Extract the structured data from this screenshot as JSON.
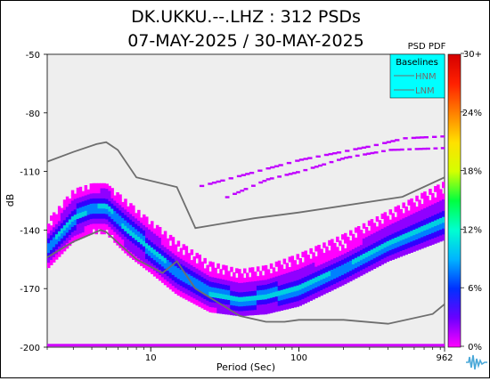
{
  "chart_data": {
    "type": "heatmap",
    "title": "DK.UKKU.--.LHZ : 312 PSDs",
    "subtitle": "07-MAY-2025 / 30-MAY-2025",
    "xlabel": "Period (Sec)",
    "ylabel": "dB",
    "x_scale": "log",
    "xlim": [
      2,
      962
    ],
    "ylim": [
      -200,
      -50
    ],
    "x_ticks": [
      10,
      100,
      962
    ],
    "x_tick_labels": [
      "10",
      "100",
      "962"
    ],
    "y_ticks": [
      -50,
      -80,
      -110,
      -140,
      -170,
      -200
    ],
    "y_tick_labels": [
      "-50",
      "-80",
      "-110",
      "-140",
      "-170",
      "-200"
    ],
    "grid": false,
    "background_color": "#eeeeee",
    "colorbar": {
      "title": "PSD PDF",
      "ticks": [
        "30+",
        "24%",
        "18%",
        "12%",
        "6%",
        "0%"
      ],
      "range_percent": [
        0,
        30
      ],
      "colors": [
        "#ff00ff",
        "#6a00ff",
        "#0030ff",
        "#00b4ff",
        "#00ffd0",
        "#00ff40",
        "#d4ff00",
        "#ffe000",
        "#ff8000",
        "#ff2000",
        "#d40000"
      ]
    },
    "legend": {
      "title": "Baselines",
      "placement": "top-right",
      "background": "#00ffff",
      "entries": [
        "HNM",
        "LNM"
      ]
    },
    "baselines": [
      {
        "name": "HNM",
        "color": "#6e6e6e",
        "points": [
          [
            2,
            -105
          ],
          [
            3,
            -100
          ],
          [
            4.3,
            -96
          ],
          [
            5,
            -95
          ],
          [
            6,
            -99
          ],
          [
            8,
            -113
          ],
          [
            15,
            -118
          ],
          [
            20,
            -139
          ],
          [
            50,
            -134
          ],
          [
            100,
            -131
          ],
          [
            500,
            -123
          ],
          [
            962,
            -113
          ]
        ]
      },
      {
        "name": "LNM",
        "color": "#6e6e6e",
        "points": [
          [
            2,
            -154
          ],
          [
            3,
            -146
          ],
          [
            4.6,
            -140
          ],
          [
            5,
            -141
          ],
          [
            8,
            -155
          ],
          [
            12,
            -162
          ],
          [
            15,
            -156
          ],
          [
            20,
            -170
          ],
          [
            40,
            -184
          ],
          [
            60,
            -187
          ],
          [
            80,
            -187
          ],
          [
            100,
            -186
          ],
          [
            200,
            -186
          ],
          [
            400,
            -188
          ],
          [
            800,
            -183
          ],
          [
            962,
            -178
          ]
        ]
      }
    ],
    "pdf_bands": [
      {
        "kind": "mode",
        "points": [
          [
            2,
            -150
          ],
          [
            3,
            -134
          ],
          [
            4,
            -129
          ],
          [
            5,
            -128
          ],
          [
            7,
            -140
          ],
          [
            10,
            -150
          ],
          [
            15,
            -162
          ],
          [
            25,
            -172
          ],
          [
            40,
            -176
          ],
          [
            60,
            -174
          ],
          [
            100,
            -170
          ],
          [
            200,
            -160
          ],
          [
            400,
            -147
          ],
          [
            962,
            -135
          ]
        ]
      },
      {
        "kind": "upper",
        "points": [
          [
            2,
            -135
          ],
          [
            3,
            -119
          ],
          [
            4,
            -116
          ],
          [
            5,
            -116
          ],
          [
            7,
            -125
          ],
          [
            10,
            -135
          ],
          [
            15,
            -145
          ],
          [
            25,
            -156
          ],
          [
            40,
            -160
          ],
          [
            60,
            -158
          ],
          [
            100,
            -152
          ],
          [
            200,
            -142
          ],
          [
            400,
            -130
          ],
          [
            962,
            -115
          ]
        ]
      },
      {
        "kind": "lower",
        "points": [
          [
            2,
            -160
          ],
          [
            3,
            -146
          ],
          [
            4,
            -142
          ],
          [
            5,
            -142
          ],
          [
            7,
            -153
          ],
          [
            10,
            -162
          ],
          [
            15,
            -173
          ],
          [
            25,
            -182
          ],
          [
            40,
            -184
          ],
          [
            60,
            -183
          ],
          [
            100,
            -179
          ],
          [
            200,
            -168
          ],
          [
            400,
            -156
          ],
          [
            962,
            -145
          ]
        ]
      },
      {
        "kind": "outlier",
        "points": [
          [
            30,
            -124
          ],
          [
            60,
            -114
          ],
          [
            100,
            -110
          ],
          [
            200,
            -103
          ],
          [
            400,
            -99
          ],
          [
            962,
            -98
          ]
        ]
      },
      {
        "kind": "outlier",
        "points": [
          [
            20,
            -118
          ],
          [
            40,
            -112
          ],
          [
            100,
            -104
          ],
          [
            300,
            -97
          ],
          [
            500,
            -93
          ],
          [
            962,
            -92
          ]
        ]
      }
    ],
    "floor_value_db": -199
  }
}
